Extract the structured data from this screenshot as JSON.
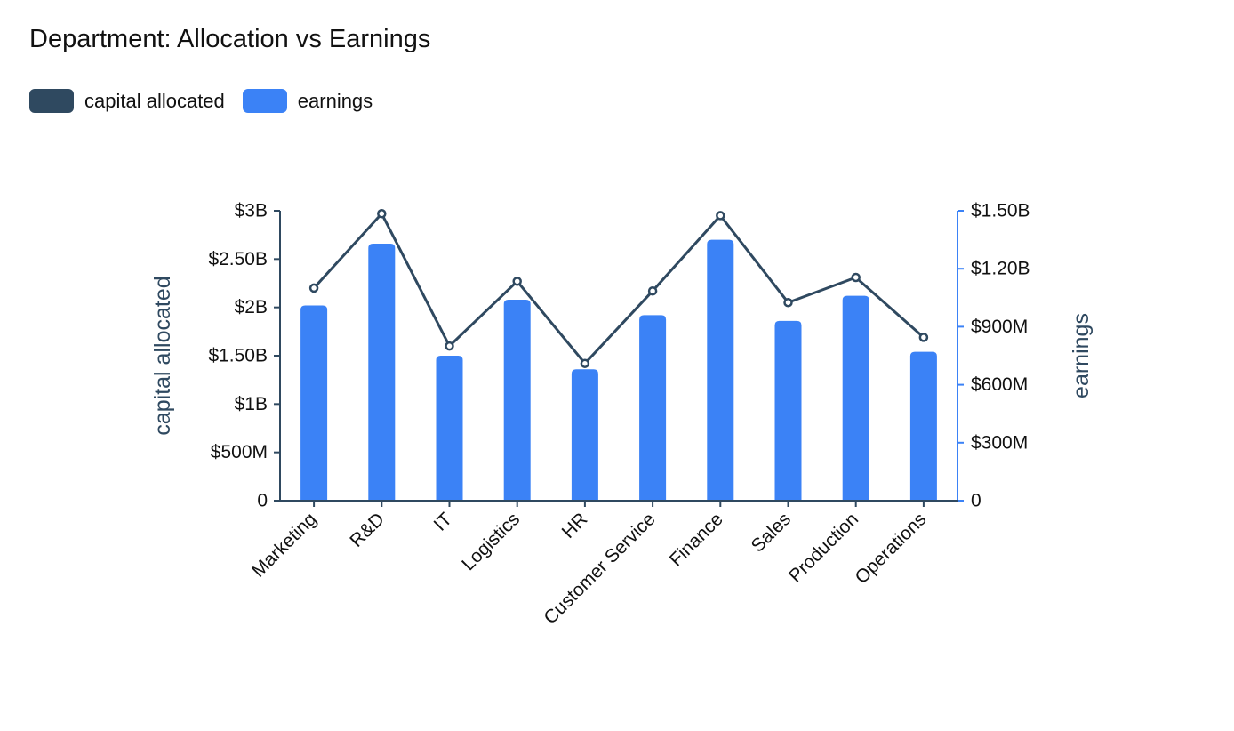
{
  "chart_data": {
    "type": "bar+line",
    "title": "Department: Allocation vs Earnings",
    "categories": [
      "Marketing",
      "R&D",
      "IT",
      "Logistics",
      "HR",
      "Customer Service",
      "Finance",
      "Sales",
      "Production",
      "Operations"
    ],
    "series": [
      {
        "name": "capital allocated",
        "type": "line",
        "axis": "left",
        "color": "#2f4960",
        "values": [
          2200000000,
          2970000000,
          1600000000,
          2270000000,
          1420000000,
          2170000000,
          2950000000,
          2050000000,
          2310000000,
          1690000000
        ]
      },
      {
        "name": "earnings",
        "type": "bar",
        "axis": "right",
        "color": "#3b82f6",
        "values": [
          1010000000,
          1330000000,
          750000000,
          1040000000,
          680000000,
          960000000,
          1350000000,
          930000000,
          1060000000,
          770000000
        ]
      }
    ],
    "left_axis": {
      "label": "capital allocated",
      "range": [
        0,
        3000000000
      ],
      "ticks": [
        0,
        500000000,
        1000000000,
        1500000000,
        2000000000,
        2500000000,
        3000000000
      ],
      "tick_labels": [
        "0",
        "$500M",
        "$1B",
        "$1.50B",
        "$2B",
        "$2.50B",
        "$3B"
      ]
    },
    "right_axis": {
      "label": "earnings",
      "range": [
        0,
        1500000000
      ],
      "ticks": [
        0,
        300000000,
        600000000,
        900000000,
        1200000000,
        1500000000
      ],
      "tick_labels": [
        "0",
        "$300M",
        "$600M",
        "$900M",
        "$1.20B",
        "$1.50B"
      ]
    },
    "grid": false,
    "legend_position": "top-left"
  }
}
